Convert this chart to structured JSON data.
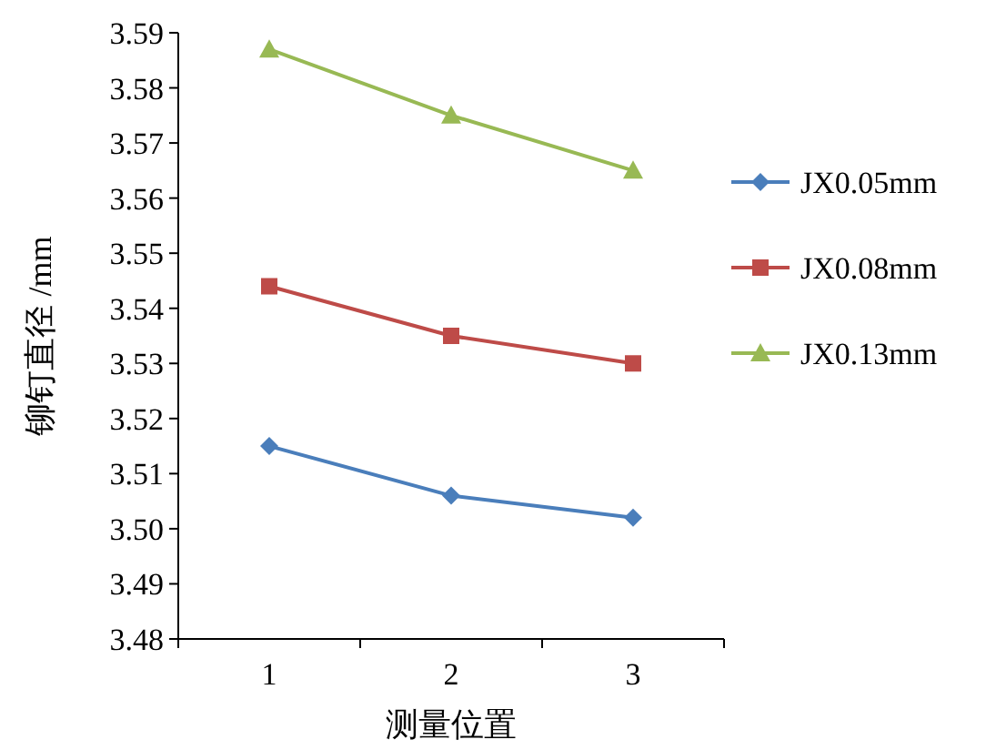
{
  "chart_data": {
    "type": "line",
    "xlabel": "测量位置",
    "ylabel": "铆钉直径 /mm",
    "categories": [
      "1",
      "2",
      "3"
    ],
    "ylim": [
      3.48,
      3.59
    ],
    "yticks": [
      {
        "value": 3.48,
        "label": "3.48"
      },
      {
        "value": 3.49,
        "label": "3.49"
      },
      {
        "value": 3.5,
        "label": "3.50"
      },
      {
        "value": 3.51,
        "label": "3.51"
      },
      {
        "value": 3.52,
        "label": "3.52"
      },
      {
        "value": 3.53,
        "label": "3.53"
      },
      {
        "value": 3.54,
        "label": "3.54"
      },
      {
        "value": 3.55,
        "label": "3.55"
      },
      {
        "value": 3.56,
        "label": "3.56"
      },
      {
        "value": 3.57,
        "label": "3.57"
      },
      {
        "value": 3.58,
        "label": "3.58"
      },
      {
        "value": 3.59,
        "label": "3.59"
      }
    ],
    "grid": false,
    "legend": "right",
    "line_style": "solid",
    "series": [
      {
        "name": "JX0.05mm",
        "color": "#4a7ebb",
        "marker": "diamond",
        "values": [
          3.515,
          3.506,
          3.502
        ]
      },
      {
        "name": "JX0.08mm",
        "color": "#be4b48",
        "marker": "square",
        "values": [
          3.544,
          3.535,
          3.53
        ]
      },
      {
        "name": "JX0.13mm",
        "color": "#98b954",
        "marker": "triangle",
        "values": [
          3.587,
          3.575,
          3.565
        ]
      }
    ]
  }
}
